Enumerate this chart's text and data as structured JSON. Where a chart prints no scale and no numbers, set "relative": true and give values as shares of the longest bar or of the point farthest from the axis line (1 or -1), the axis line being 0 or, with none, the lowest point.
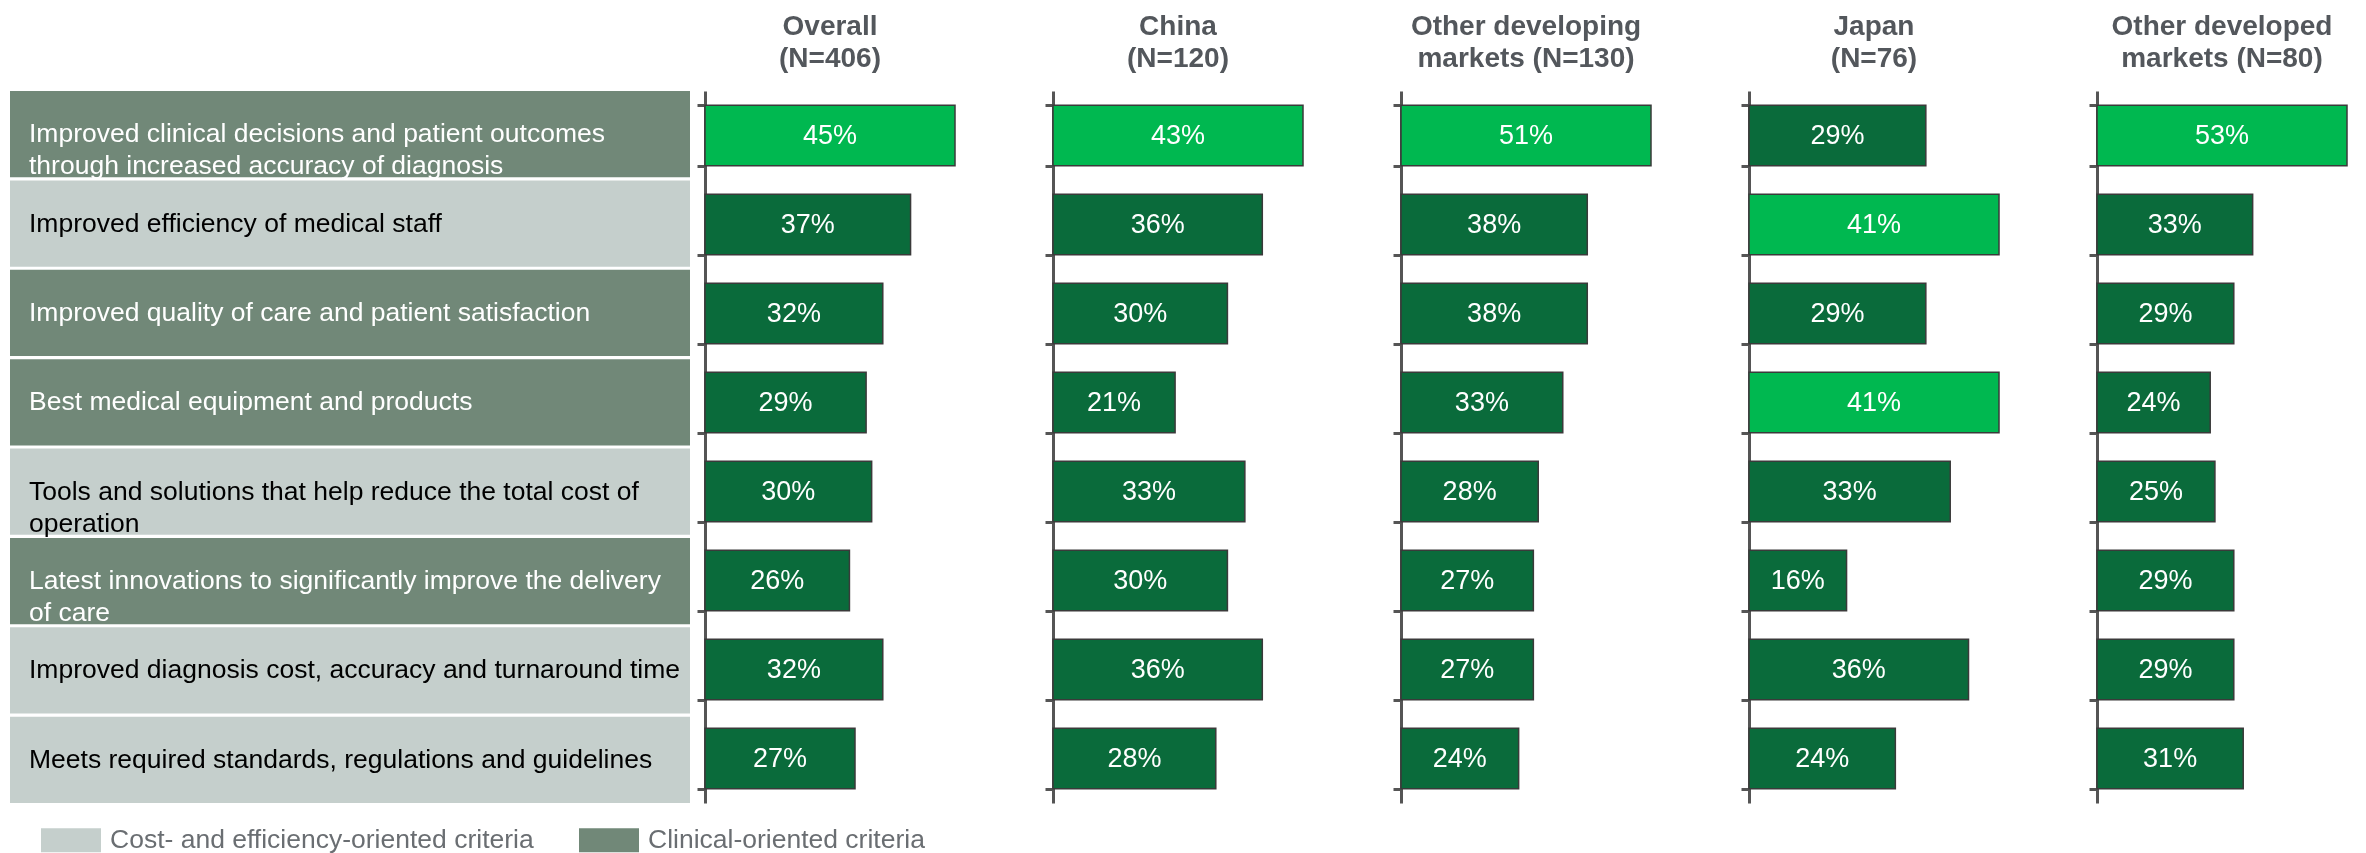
{
  "chart_data": [
    {
      "type": "bar",
      "orientation": "horizontal",
      "relative": true,
      "stacked": true,
      "categories": [
        "Improved clinical decisions and patient outcomes through increased accuracy of diagnosis",
        "Improved efficiency of medical staff",
        "Improved quality of care and patient satisfaction",
        "Best medical equipment and products",
        "Tools and solutions that help reduce the total cost of operation",
        "Latest innovations to significantly improve the delivery of care",
        "Improved diagnosis cost, accuracy and turnaround time",
        "Meets required standards, regulations and guidelines"
      ],
      "series": [
        {
          "name": "Cost- and efficiency-oriented criteria",
          "color": "#c5cfcc",
          "values": [
            null,
            1,
            null,
            null,
            1,
            null,
            1,
            1
          ]
        },
        {
          "name": "Clinical-oriented criteria",
          "color": "#718878",
          "values": [
            1,
            null,
            1,
            1,
            null,
            1,
            null,
            null
          ]
        }
      ],
      "legend": "bottom right"
    },
    {
      "type": "bar",
      "orientation": "horizontal",
      "title": "Overall (N=406)",
      "categories": [
        null,
        null,
        null,
        null,
        null,
        null,
        null,
        null
      ],
      "values": [
        45,
        37,
        32,
        29,
        30,
        26,
        32,
        27
      ],
      "value_labels": [
        "45%",
        "37%",
        "32%",
        "29%",
        "30%",
        "26%",
        "32%",
        "27%"
      ],
      "colors": [
        "#00b850",
        "#0a6b3b",
        "#0a6b3b",
        "#0a6b3b",
        "#0a6b3b",
        "#0a6b3b",
        "#0a6b3b",
        "#0a6b3b"
      ],
      "tick_labels": false
    },
    {
      "type": "bar",
      "orientation": "horizontal",
      "title": "China (N=120)",
      "categories": [
        null,
        null,
        null,
        null,
        null,
        null,
        null,
        null
      ],
      "values": [
        43,
        36,
        30,
        21,
        33,
        30,
        36,
        28
      ],
      "value_labels": [
        "43%",
        "36%",
        "30%",
        "21%",
        "33%",
        "30%",
        "36%",
        "28%"
      ],
      "colors": [
        "#00b850",
        "#0a6b3b",
        "#0a6b3b",
        "#0a6b3b",
        "#0a6b3b",
        "#0a6b3b",
        "#0a6b3b",
        "#0a6b3b"
      ],
      "tick_labels": false
    },
    {
      "type": "bar",
      "orientation": "horizontal",
      "title": "Other developing markets (N=130)",
      "categories": [
        null,
        null,
        null,
        null,
        null,
        null,
        null,
        null
      ],
      "values": [
        51,
        38,
        38,
        33,
        28,
        27,
        27,
        24
      ],
      "value_labels": [
        "51%",
        "38%",
        "38%",
        "33%",
        "28%",
        "27%",
        "27%",
        "24%"
      ],
      "colors": [
        "#00b850",
        "#0a6b3b",
        "#0a6b3b",
        "#0a6b3b",
        "#0a6b3b",
        "#0a6b3b",
        "#0a6b3b",
        "#0a6b3b"
      ],
      "tick_labels": false
    },
    {
      "type": "bar",
      "orientation": "horizontal",
      "title": "Japan (N=76)",
      "categories": [
        null,
        null,
        null,
        null,
        null,
        null,
        null,
        null
      ],
      "values": [
        29,
        41,
        29,
        41,
        33,
        16,
        36,
        24
      ],
      "value_labels": [
        "29%",
        "41%",
        "29%",
        "41%",
        "33%",
        "16%",
        "36%",
        "24%"
      ],
      "colors": [
        "#0a6b3b",
        "#00b850",
        "#0a6b3b",
        "#00b850",
        "#0a6b3b",
        "#0a6b3b",
        "#0a6b3b",
        "#0a6b3b"
      ],
      "tick_labels": false
    },
    {
      "type": "bar",
      "orientation": "horizontal",
      "title": "Other developed markets (N=80)",
      "categories": [
        null,
        null,
        null,
        null,
        null,
        null,
        null,
        null
      ],
      "values": [
        53,
        33,
        29,
        24,
        25,
        29,
        29,
        31
      ],
      "value_labels": [
        "53%",
        "33%",
        "29%",
        "24%",
        "25%",
        "29%",
        "29%",
        "31%"
      ],
      "colors": [
        "#00b850",
        "#0a6b3b",
        "#0a6b3b",
        "#0a6b3b",
        "#0a6b3b",
        "#0a6b3b",
        "#0a6b3b",
        "#0a6b3b"
      ],
      "tick_labels": false
    }
  ]
}
